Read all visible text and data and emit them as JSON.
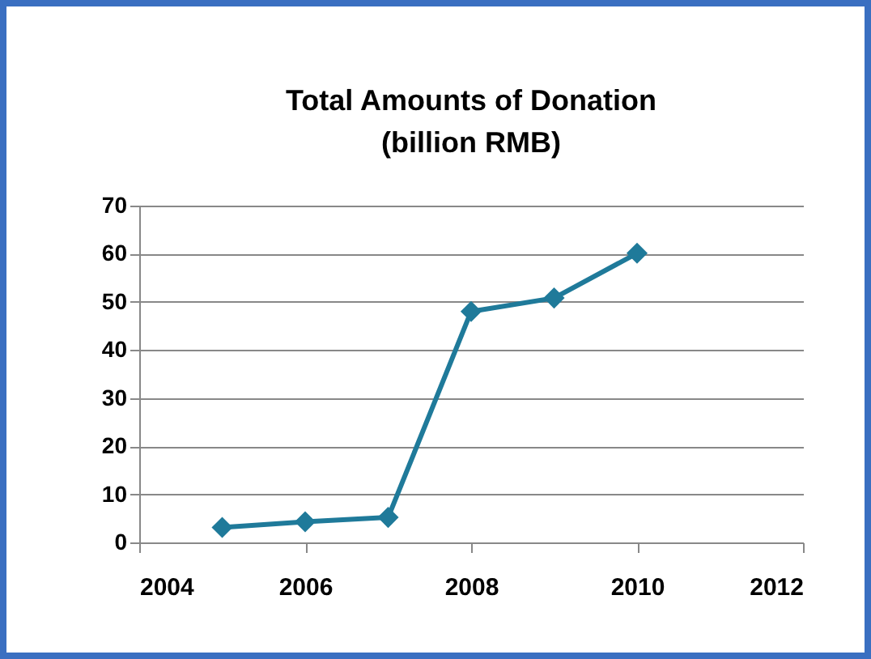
{
  "chart_data": {
    "type": "line",
    "title": "Total Amounts of Donation\n(billion RMB)",
    "x": [
      2005,
      2006,
      2007,
      2008,
      2009,
      2010
    ],
    "series": [
      {
        "color": "#1f7a9a",
        "values": [
          3.1,
          4.3,
          5.2,
          48,
          50.8,
          60.1
        ]
      }
    ],
    "xlim": [
      2004,
      2012
    ],
    "xticks": [
      2004,
      2006,
      2008,
      2010,
      2012
    ],
    "ylim": [
      0,
      70
    ],
    "yticks": [
      0,
      10,
      20,
      30,
      40,
      50,
      60,
      70
    ],
    "grid": "y",
    "marker": "diamond",
    "legend": false
  }
}
